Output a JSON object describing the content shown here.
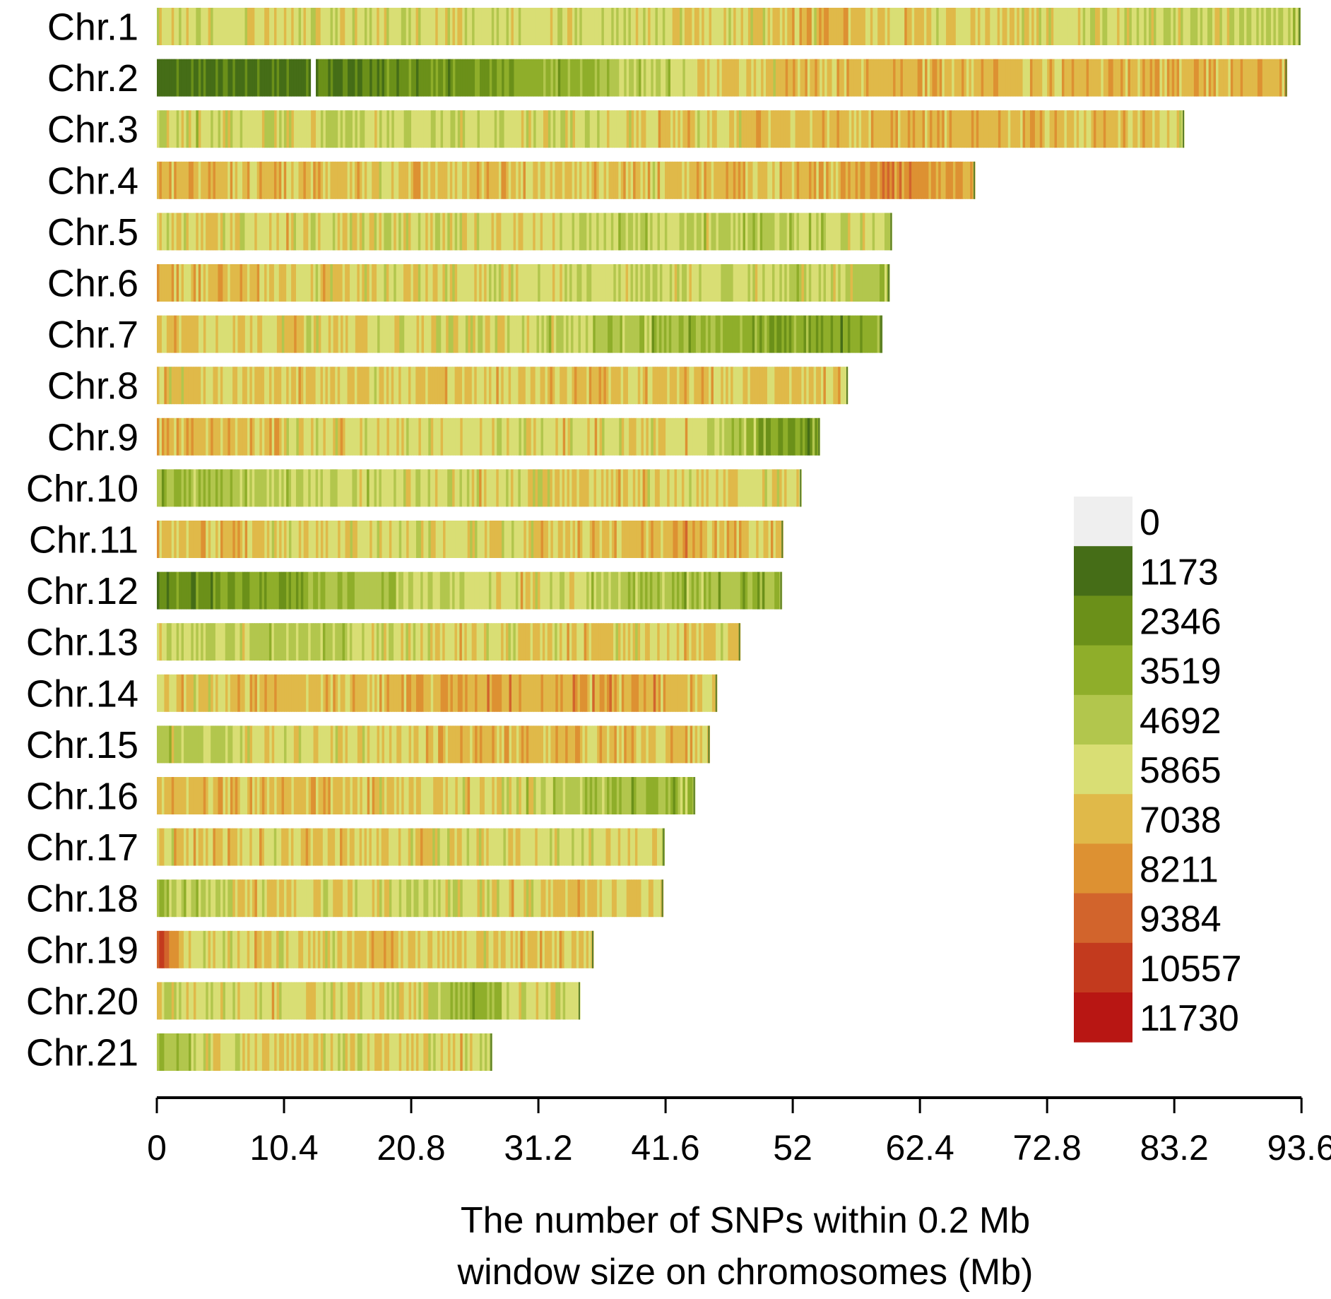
{
  "chart_data": {
    "type": "heatmap",
    "xlabel_lines": [
      "The number of SNPs within 0.2 Mb",
      "window size on chromosomes (Mb)"
    ],
    "xlim": [
      0,
      93.6
    ],
    "xticks": [
      "0",
      "10.4",
      "20.8",
      "31.2",
      "41.6",
      "52",
      "62.4",
      "72.8",
      "83.2",
      "93.6"
    ],
    "window_size_mb": 0.2,
    "chromosomes": [
      {
        "name": "Chr.1",
        "length_mb": 93.5,
        "profile": [
          [
            0,
            5800
          ],
          [
            0.2,
            0.45
          ],
          [
            0.45,
            0.45
          ],
          [
            0.6,
            0.55
          ],
          [
            0.82,
            0.45
          ],
          [
            1,
            0.4
          ]
        ]
      },
      {
        "name": "Chr.2",
        "length_mb": 92.4,
        "profile": [
          [
            0,
            0.05
          ],
          [
            0.15,
            0.08
          ],
          [
            0.35,
            0.25
          ],
          [
            0.5,
            0.5
          ],
          [
            0.62,
            0.55
          ],
          [
            1,
            0.55
          ]
        ]
      },
      {
        "name": "Chr.3",
        "length_mb": 84.0,
        "profile": [
          [
            0,
            0.45
          ],
          [
            0.3,
            0.4
          ],
          [
            0.5,
            0.5
          ],
          [
            0.75,
            0.58
          ],
          [
            1,
            0.5
          ]
        ]
      },
      {
        "name": "Chr.4",
        "length_mb": 66.9,
        "profile": [
          [
            0,
            0.55
          ],
          [
            0.5,
            0.52
          ],
          [
            0.8,
            0.55
          ],
          [
            0.92,
            0.68
          ],
          [
            1,
            0.55
          ]
        ]
      },
      {
        "name": "Chr.5",
        "length_mb": 60.1,
        "profile": [
          [
            0,
            0.48
          ],
          [
            0.5,
            0.45
          ],
          [
            0.82,
            0.35
          ],
          [
            1,
            0.45
          ]
        ]
      },
      {
        "name": "Chr.6",
        "length_mb": 59.9,
        "profile": [
          [
            0,
            0.55
          ],
          [
            0.5,
            0.45
          ],
          [
            0.85,
            0.4
          ],
          [
            1,
            0.35
          ]
        ]
      },
      {
        "name": "Chr.7",
        "length_mb": 59.3,
        "profile": [
          [
            0,
            0.52
          ],
          [
            0.5,
            0.45
          ],
          [
            0.8,
            0.25
          ],
          [
            1,
            0.2
          ]
        ]
      },
      {
        "name": "Chr.8",
        "length_mb": 56.5,
        "profile": [
          [
            0,
            0.5
          ],
          [
            0.5,
            0.52
          ],
          [
            1,
            0.5
          ]
        ]
      },
      {
        "name": "Chr.9",
        "length_mb": 54.2,
        "profile": [
          [
            0,
            0.58
          ],
          [
            0.3,
            0.45
          ],
          [
            0.8,
            0.5
          ],
          [
            0.92,
            0.2
          ],
          [
            1,
            0.2
          ]
        ]
      },
      {
        "name": "Chr.10",
        "length_mb": 52.7,
        "profile": [
          [
            0,
            0.3
          ],
          [
            0.3,
            0.42
          ],
          [
            0.7,
            0.5
          ],
          [
            1,
            0.45
          ]
        ]
      },
      {
        "name": "Chr.11",
        "length_mb": 51.2,
        "profile": [
          [
            0,
            0.55
          ],
          [
            0.5,
            0.45
          ],
          [
            0.85,
            0.6
          ],
          [
            1,
            0.5
          ]
        ]
      },
      {
        "name": "Chr.12",
        "length_mb": 51.1,
        "profile": [
          [
            0,
            0.12
          ],
          [
            0.3,
            0.3
          ],
          [
            0.6,
            0.5
          ],
          [
            0.8,
            0.3
          ],
          [
            1,
            0.3
          ]
        ]
      },
      {
        "name": "Chr.13",
        "length_mb": 47.7,
        "profile": [
          [
            0,
            0.45
          ],
          [
            0.25,
            0.35
          ],
          [
            0.5,
            0.5
          ],
          [
            1,
            0.5
          ]
        ]
      },
      {
        "name": "Chr.14",
        "length_mb": 45.8,
        "profile": [
          [
            0,
            0.5
          ],
          [
            0.5,
            0.58
          ],
          [
            0.85,
            0.6
          ],
          [
            1,
            0.5
          ]
        ]
      },
      {
        "name": "Chr.15",
        "length_mb": 45.2,
        "profile": [
          [
            0,
            0.35
          ],
          [
            0.2,
            0.45
          ],
          [
            0.6,
            0.55
          ],
          [
            1,
            0.5
          ]
        ]
      },
      {
        "name": "Chr.16",
        "length_mb": 44.0,
        "profile": [
          [
            0,
            0.55
          ],
          [
            0.6,
            0.5
          ],
          [
            0.85,
            0.3
          ],
          [
            1,
            0.3
          ]
        ]
      },
      {
        "name": "Chr.17",
        "length_mb": 41.5,
        "profile": [
          [
            0,
            0.5
          ],
          [
            0.5,
            0.48
          ],
          [
            1,
            0.45
          ]
        ]
      },
      {
        "name": "Chr.18",
        "length_mb": 41.4,
        "profile": [
          [
            0,
            0.3
          ],
          [
            0.2,
            0.5
          ],
          [
            0.5,
            0.42
          ],
          [
            0.8,
            0.52
          ],
          [
            1,
            0.5
          ]
        ]
      },
      {
        "name": "Chr.19",
        "length_mb": 35.7,
        "profile": [
          [
            0,
            0.8
          ],
          [
            0.08,
            0.45
          ],
          [
            0.5,
            0.52
          ],
          [
            1,
            0.5
          ]
        ]
      },
      {
        "name": "Chr.20",
        "length_mb": 34.6,
        "profile": [
          [
            0,
            0.45
          ],
          [
            0.6,
            0.48
          ],
          [
            0.75,
            0.2
          ],
          [
            0.85,
            0.45
          ],
          [
            1,
            0.45
          ]
        ]
      },
      {
        "name": "Chr.21",
        "length_mb": 27.4,
        "profile": [
          [
            0,
            0.3
          ],
          [
            0.3,
            0.5
          ],
          [
            1,
            0.45
          ]
        ]
      }
    ],
    "legend": {
      "labels": [
        "0",
        "1173",
        "2346",
        "3519",
        "4692",
        "5865",
        "7038",
        "8211",
        "9384",
        "10557",
        "11730"
      ],
      "colors": [
        "#efefef",
        "#456d17",
        "#6b9019",
        "#8fae2a",
        "#b2c64d",
        "#d9de74",
        "#e0b949",
        "#dd9132",
        "#d2642c",
        "#c33a1e",
        "#b81613"
      ]
    }
  }
}
